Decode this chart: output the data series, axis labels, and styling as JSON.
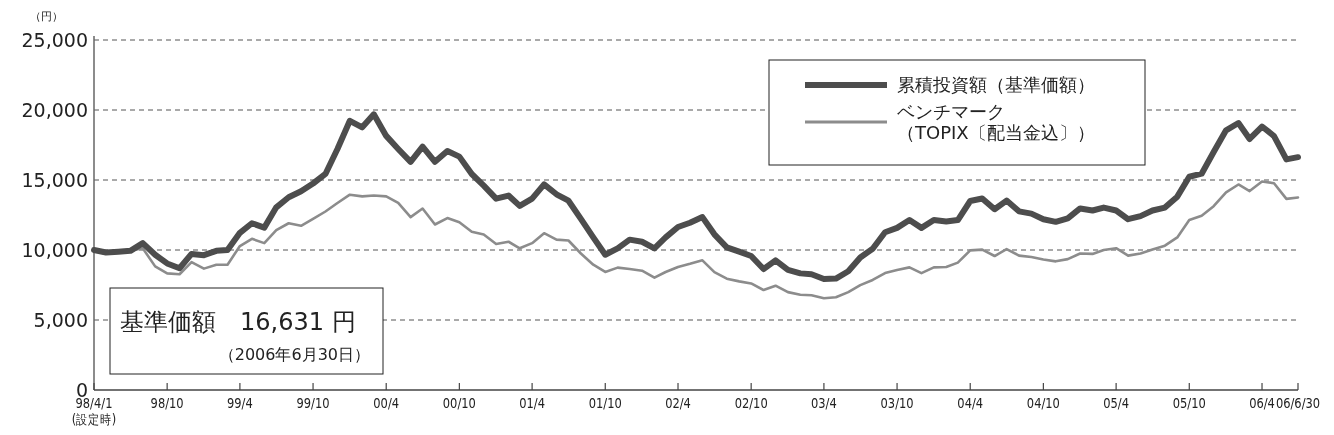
{
  "chart_data": {
    "type": "line",
    "ylabel": "（円）",
    "x": [
      "1998-04-01",
      "1998-05-01",
      "1998-06-01",
      "1998-07-01",
      "1998-08-01",
      "1998-09-01",
      "1998-10-01",
      "1998-11-01",
      "1998-12-01",
      "1999-01-01",
      "1999-02-01",
      "1999-03-01",
      "1999-04-01",
      "1999-05-01",
      "1999-06-01",
      "1999-07-01",
      "1999-08-01",
      "1999-09-01",
      "1999-10-01",
      "1999-11-01",
      "1999-12-01",
      "2000-01-01",
      "2000-02-01",
      "2000-03-01",
      "2000-04-01",
      "2000-05-01",
      "2000-06-01",
      "2000-07-01",
      "2000-08-01",
      "2000-09-01",
      "2000-10-01",
      "2000-11-01",
      "2000-12-01",
      "2001-01-01",
      "2001-02-01",
      "2001-03-01",
      "2001-04-01",
      "2001-05-01",
      "2001-06-01",
      "2001-07-01",
      "2001-08-01",
      "2001-09-01",
      "2001-10-01",
      "2001-11-01",
      "2001-12-01",
      "2002-01-01",
      "2002-02-01",
      "2002-03-01",
      "2002-04-01",
      "2002-05-01",
      "2002-06-01",
      "2002-07-01",
      "2002-08-01",
      "2002-09-01",
      "2002-10-01",
      "2002-11-01",
      "2002-12-01",
      "2003-01-01",
      "2003-02-01",
      "2003-03-01",
      "2003-04-01",
      "2003-05-01",
      "2003-06-01",
      "2003-07-01",
      "2003-08-01",
      "2003-09-01",
      "2003-10-01",
      "2003-11-01",
      "2003-12-01",
      "2004-01-01",
      "2004-02-01",
      "2004-03-01",
      "2004-04-01",
      "2004-05-01",
      "2004-06-01",
      "2004-07-01",
      "2004-08-01",
      "2004-09-01",
      "2004-10-01",
      "2004-11-01",
      "2004-12-01",
      "2005-01-01",
      "2005-02-01",
      "2005-03-01",
      "2005-04-01",
      "2005-05-01",
      "2005-06-01",
      "2005-07-01",
      "2005-08-01",
      "2005-09-01",
      "2005-10-01",
      "2005-11-01",
      "2005-12-01",
      "2006-01-01",
      "2006-02-01",
      "2006-03-01",
      "2006-04-01",
      "2006-05-01",
      "2006-06-01",
      "2006-06-30"
    ],
    "series": [
      {
        "name": "累積投資額（基準価額）",
        "color": "#4d4d4d",
        "values": [
          10000,
          9820,
          9880,
          9940,
          10490,
          9660,
          9040,
          8700,
          9720,
          9630,
          9940,
          10000,
          11230,
          11910,
          11600,
          13050,
          13770,
          14200,
          14750,
          15430,
          17220,
          19230,
          18760,
          19690,
          18150,
          17220,
          16300,
          17380,
          16300,
          17070,
          16670,
          15430,
          14600,
          13670,
          13890,
          13150,
          13670,
          14690,
          13980,
          13520,
          12220,
          10900,
          9660,
          10120,
          10740,
          10590,
          10120,
          10900,
          11640,
          11950,
          12350,
          11120,
          10190,
          9880,
          9570,
          8640,
          9260,
          8580,
          8330,
          8270,
          7930,
          7960,
          8480,
          9470,
          10090,
          11270,
          11580,
          12140,
          11580,
          12140,
          12040,
          12140,
          13500,
          13680,
          12910,
          13530,
          12760,
          12600,
          12200,
          12010,
          12260,
          12970,
          12820,
          13030,
          12820,
          12200,
          12420,
          12820,
          13030,
          13810,
          15230,
          15450,
          17000,
          18550,
          19070,
          17930,
          18820,
          18140,
          16470,
          16631
        ]
      },
      {
        "name": "ベンチマーク（TOPIX〔配当金込〕）",
        "color": "#8c8c8c",
        "values": [
          10000,
          9880,
          9910,
          9940,
          10120,
          8830,
          8330,
          8270,
          9140,
          8670,
          8950,
          8950,
          10280,
          10800,
          10490,
          11420,
          11910,
          11730,
          12220,
          12750,
          13360,
          13950,
          13830,
          13890,
          13830,
          13360,
          12350,
          12960,
          11820,
          12280,
          11980,
          11300,
          11110,
          10430,
          10590,
          10120,
          10490,
          11200,
          10740,
          10680,
          9750,
          8950,
          8430,
          8740,
          8640,
          8520,
          8030,
          8430,
          8790,
          9010,
          9260,
          8420,
          7950,
          7760,
          7610,
          7140,
          7450,
          6990,
          6800,
          6770,
          6550,
          6620,
          6990,
          7490,
          7860,
          8350,
          8570,
          8760,
          8350,
          8760,
          8790,
          9100,
          9970,
          10030,
          9570,
          10060,
          9600,
          9500,
          9320,
          9190,
          9350,
          9750,
          9720,
          10000,
          10130,
          9600,
          9750,
          10030,
          10310,
          10900,
          12140,
          12450,
          13130,
          14120,
          14680,
          14210,
          14890,
          14770,
          13650,
          13750
        ]
      }
    ],
    "xlim": [
      "1998-04-01",
      "2006-06-30"
    ],
    "xticks": [
      {
        "value": "1998-04-01",
        "label": "98/4/1\n(設定時)"
      },
      {
        "value": "1998-10-01",
        "label": "98/10"
      },
      {
        "value": "1999-04-01",
        "label": "99/4"
      },
      {
        "value": "1999-10-01",
        "label": "99/10"
      },
      {
        "value": "2000-04-01",
        "label": "00/4"
      },
      {
        "value": "2000-10-01",
        "label": "00/10"
      },
      {
        "value": "2001-04-01",
        "label": "01/4"
      },
      {
        "value": "2001-10-01",
        "label": "01/10"
      },
      {
        "value": "2002-04-01",
        "label": "02/4"
      },
      {
        "value": "2002-10-01",
        "label": "02/10"
      },
      {
        "value": "2003-04-01",
        "label": "03/4"
      },
      {
        "value": "2003-10-01",
        "label": "03/10"
      },
      {
        "value": "2004-04-01",
        "label": "04/4"
      },
      {
        "value": "2004-10-01",
        "label": "04/10"
      },
      {
        "value": "2005-04-01",
        "label": "05/4"
      },
      {
        "value": "2005-10-01",
        "label": "05/10"
      },
      {
        "value": "2006-04-01",
        "label": "06/4"
      },
      {
        "value": "2006-06-30",
        "label": "06/6/30"
      }
    ],
    "ylim": [
      0,
      25000
    ],
    "yticks": [
      {
        "value": 0,
        "label": "0"
      },
      {
        "value": 5000,
        "label": "5,000"
      },
      {
        "value": 10000,
        "label": "10,000"
      },
      {
        "value": 15000,
        "label": "15,000"
      },
      {
        "value": 20000,
        "label": "20,000"
      },
      {
        "value": 25000,
        "label": "25,000"
      }
    ],
    "grid": "y",
    "legend": "top right",
    "annotations": [
      "基準価額　16,631 円",
      "（2006年6月30日）"
    ]
  }
}
